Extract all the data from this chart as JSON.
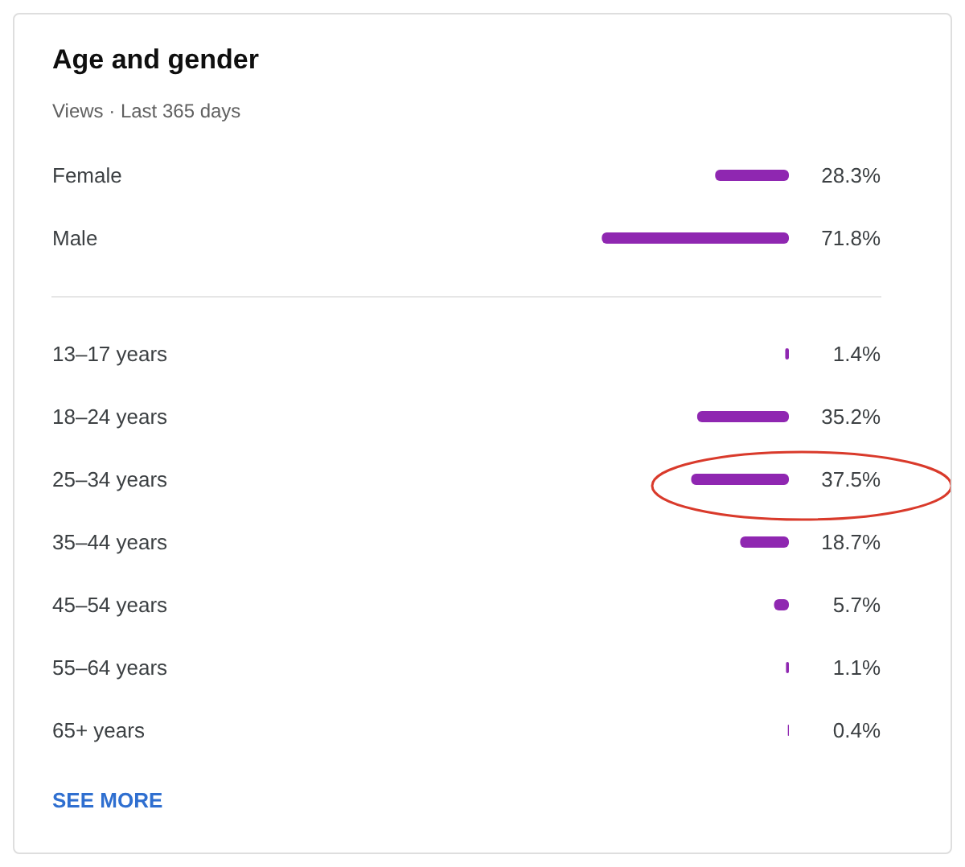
{
  "chart_data": [
    {
      "type": "bar",
      "orientation": "horizontal",
      "title": "Age and gender",
      "subtitle": "Views · Last 365 days",
      "tick_labels": "y",
      "categories": [
        "Female",
        "Male"
      ],
      "values": [
        28.3,
        71.8
      ],
      "value_labels": [
        "28.3%",
        "71.8%"
      ],
      "color": "#8f27b1"
    },
    {
      "type": "bar",
      "orientation": "horizontal",
      "tick_labels": "y",
      "categories": [
        "13–17 years",
        "18–24 years",
        "25–34 years",
        "35–44 years",
        "45–54 years",
        "55–64 years",
        "65+ years"
      ],
      "values": [
        1.4,
        35.2,
        37.5,
        18.7,
        5.7,
        1.1,
        0.4
      ],
      "value_labels": [
        "1.4%",
        "35.2%",
        "37.5%",
        "18.7%",
        "5.7%",
        "1.1%",
        "0.4%"
      ],
      "color": "#8f27b1",
      "annotations": [
        "SEE MORE"
      ]
    }
  ]
}
